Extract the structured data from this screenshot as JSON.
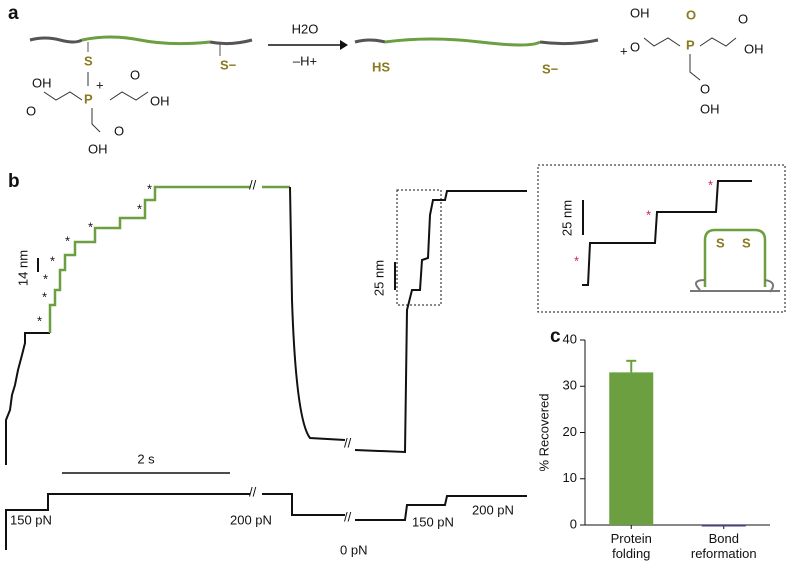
{
  "panel_a": {
    "label": "a",
    "reagent": "H2O",
    "byproduct": "–H+",
    "plus": "+",
    "reactant_thiols": [
      "S",
      "S−"
    ],
    "product_thiols": [
      "HS",
      "S−"
    ],
    "phosphine": {
      "atom": "P",
      "charge": "+",
      "groups": [
        "OH",
        "O",
        "OH",
        "O",
        "O",
        "OH"
      ]
    },
    "oxide": {
      "atom": "P",
      "oxygen": "O",
      "groups": [
        "OH",
        "O",
        "O",
        "OH",
        "O",
        "OH"
      ]
    }
  },
  "panel_b": {
    "label": "b",
    "scale_bars": [
      "14 nm",
      "25 nm",
      "2 s"
    ],
    "forces": [
      "150 pN",
      "200 pN",
      "0 pN",
      "150 pN",
      "200 pN"
    ],
    "marker": "*",
    "inset_scale": "25 nm",
    "inset_thiols": [
      "S",
      "S"
    ]
  },
  "chart_data": {
    "type": "bar",
    "panel_label": "c",
    "y_label": "% Recovered",
    "categories": [
      "Protein folding",
      "Bond reformation"
    ],
    "values": [
      33,
      0
    ],
    "errors": [
      2.5,
      null
    ],
    "colors": [
      "#6b9f40",
      "#4a3f8f"
    ],
    "ylim": [
      0,
      40
    ],
    "yticks": [
      0,
      10,
      20,
      30,
      40
    ]
  }
}
